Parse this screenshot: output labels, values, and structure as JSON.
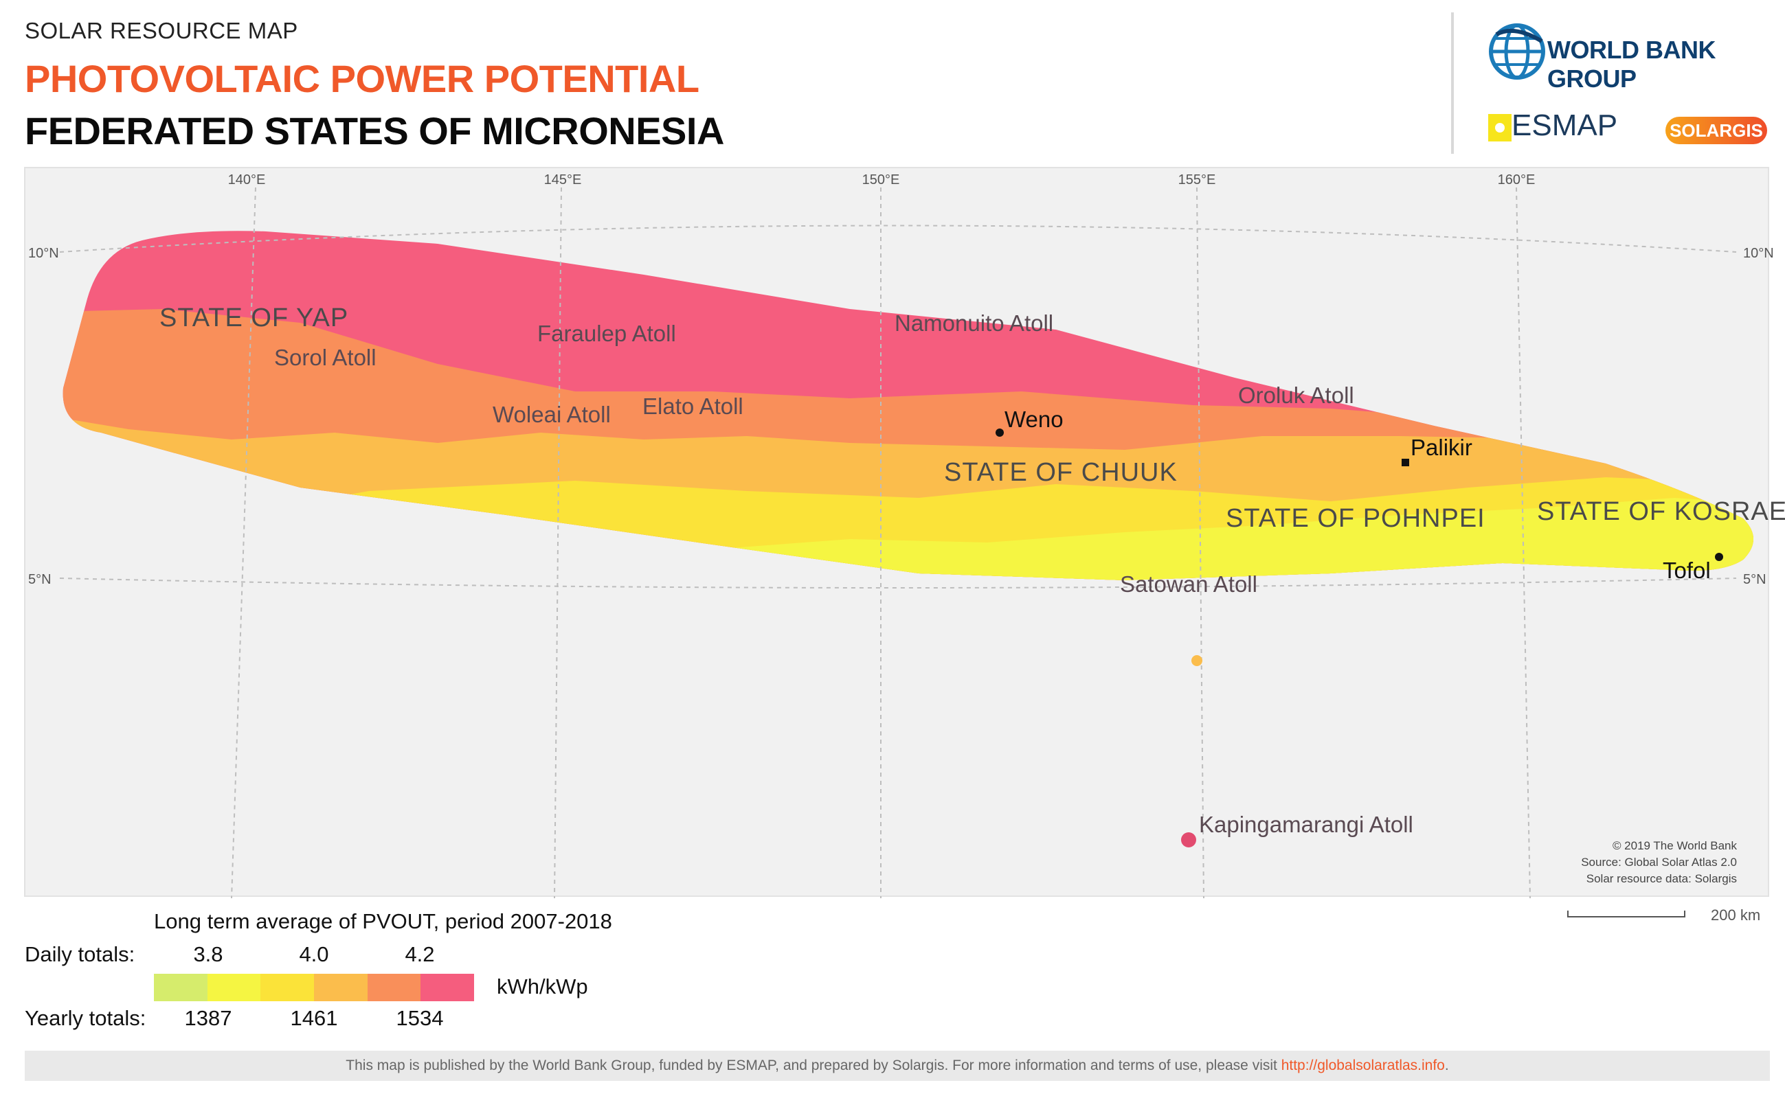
{
  "header": {
    "kicker": "SOLAR RESOURCE MAP",
    "title": "PHOTOVOLTAIC POWER POTENTIAL",
    "country": "FEDERATED STATES OF MICRONESIA"
  },
  "logos": {
    "world_bank": "WORLD BANK GROUP",
    "esmap": "ESMAP",
    "solargis": "SOLARGIS"
  },
  "map": {
    "longitude_labels": [
      "140°E",
      "145°E",
      "150°E",
      "155°E",
      "160°E"
    ],
    "latitude_labels": {
      "north10_left": "10°N",
      "north10_right": "10°N",
      "north5_left": "5°N",
      "north5_right": "5°N"
    },
    "states": [
      "STATE OF YAP",
      "STATE OF CHUUK",
      "STATE OF POHNPEI",
      "STATE OF KOSRAE"
    ],
    "places": [
      "Faraulep Atoll",
      "Namonuito Atoll",
      "Sorol Atoll",
      "Woleai Atoll",
      "Elato Atoll",
      "Oroluk Atoll",
      "Satowan Atoll",
      "Kapingamarangi Atoll"
    ],
    "cities": [
      "Weno",
      "Palikir",
      "Tofol"
    ],
    "colors": {
      "background": "#f1f1f1",
      "class_1": "#d6ec6c",
      "class_2": "#f5f542",
      "class_3": "#fbe339",
      "class_4": "#fbbd4c",
      "class_5": "#f98f5a",
      "class_6": "#f55d7e"
    }
  },
  "credits": {
    "line1": "© 2019 The World Bank",
    "line2": "Source: Global Solar Atlas 2.0",
    "line3": "Solar resource data: Solargis"
  },
  "scale": {
    "label": "200 km"
  },
  "legend": {
    "title": "Long term average of PVOUT, period 2007-2018",
    "daily_label": "Daily totals:",
    "yearly_label": "Yearly totals:",
    "daily_ticks": [
      "3.8",
      "4.0",
      "4.2"
    ],
    "yearly_ticks": [
      "1387",
      "1461",
      "1534"
    ],
    "unit": "kWh/kWp",
    "swatches": [
      "#d6ec6c",
      "#f5f542",
      "#fbe339",
      "#fbbd4c",
      "#f98f5a",
      "#f55d7e"
    ]
  },
  "footer": {
    "text": "This map is published by the World Bank Group, funded by ESMAP, and prepared by Solargis. For more information and terms of use, please visit ",
    "link": "http://globalsolaratlas.info",
    "end": "."
  }
}
